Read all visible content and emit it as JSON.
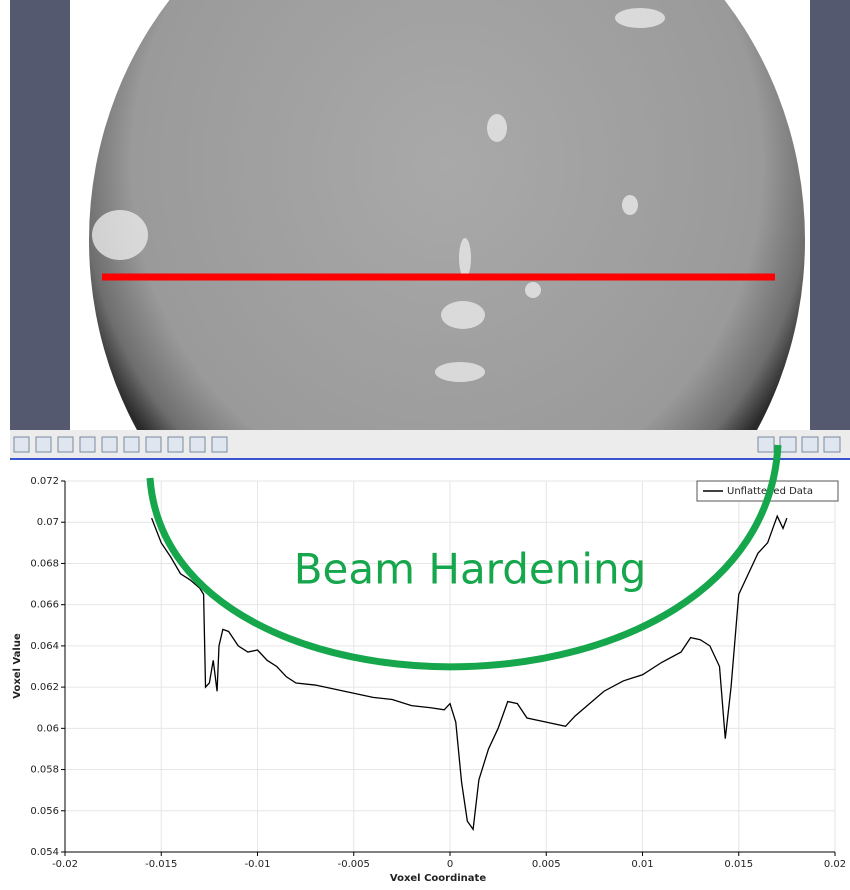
{
  "chart_data": {
    "type": "line",
    "xlabel": "Voxel Coordinate",
    "ylabel": "Voxel Value",
    "annotation": "Beam Hardening",
    "legend": "upper right",
    "grid": true,
    "xlim": [
      -0.02,
      0.02
    ],
    "xticks": [
      -0.02,
      -0.015,
      -0.01,
      -0.005,
      0,
      0.005,
      0.01,
      0.015,
      0.02
    ],
    "ylim": [
      0.054,
      0.072
    ],
    "yticks": [
      0.054,
      0.056,
      0.058,
      0.06,
      0.062,
      0.064,
      0.066,
      0.068,
      0.07,
      0.072
    ],
    "series": [
      {
        "name": "Unflattened Data",
        "color": "#000000",
        "x": [
          -0.0155,
          -0.015,
          -0.0145,
          -0.014,
          -0.0135,
          -0.013,
          -0.0128,
          -0.0127,
          -0.0125,
          -0.0123,
          -0.0121,
          -0.012,
          -0.0118,
          -0.0115,
          -0.011,
          -0.0105,
          -0.01,
          -0.0095,
          -0.009,
          -0.0085,
          -0.008,
          -0.007,
          -0.006,
          -0.005,
          -0.004,
          -0.003,
          -0.002,
          -0.001,
          -0.0003,
          0,
          0.0003,
          0.0006,
          0.0009,
          0.0012,
          0.0015,
          0.002,
          0.0025,
          0.003,
          0.0035,
          0.004,
          0.005,
          0.006,
          0.0065,
          0.007,
          0.008,
          0.009,
          0.01,
          0.011,
          0.012,
          0.0125,
          0.013,
          0.0135,
          0.014,
          0.0143,
          0.0146,
          0.015,
          0.0155,
          0.016,
          0.0165,
          0.017,
          0.0173,
          0.0175
        ],
        "values": [
          0.0702,
          0.069,
          0.0683,
          0.0675,
          0.0672,
          0.0668,
          0.0665,
          0.062,
          0.0622,
          0.0633,
          0.0618,
          0.064,
          0.0648,
          0.0647,
          0.064,
          0.0637,
          0.0638,
          0.0633,
          0.063,
          0.0625,
          0.0622,
          0.0621,
          0.0619,
          0.0617,
          0.0615,
          0.0614,
          0.0611,
          0.061,
          0.0609,
          0.0612,
          0.0603,
          0.0574,
          0.0555,
          0.0551,
          0.0575,
          0.059,
          0.06,
          0.0613,
          0.0612,
          0.0605,
          0.0603,
          0.0601,
          0.0606,
          0.061,
          0.0618,
          0.0623,
          0.0626,
          0.0632,
          0.0637,
          0.0644,
          0.0643,
          0.064,
          0.063,
          0.0595,
          0.062,
          0.0665,
          0.0675,
          0.0685,
          0.069,
          0.0703,
          0.0697,
          0.0702
        ]
      }
    ]
  }
}
